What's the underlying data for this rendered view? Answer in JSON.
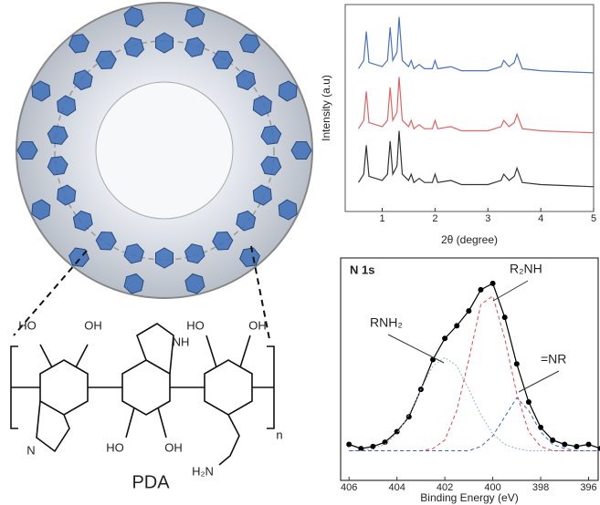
{
  "chart_data": [
    {
      "type": "line",
      "xlabel": "2θ (degree)",
      "ylabel": "Intensity (a.u)",
      "xlim": [
        0.3,
        5
      ],
      "xticks": [
        1,
        2,
        3,
        4,
        5
      ],
      "ylim": [
        0,
        100
      ],
      "x": [
        0.55,
        0.65,
        0.7,
        0.75,
        1.0,
        1.1,
        1.15,
        1.2,
        1.28,
        1.32,
        1.38,
        1.5,
        1.55,
        1.6,
        1.7,
        1.8,
        1.95,
        2.0,
        2.05,
        2.3,
        2.5,
        3.0,
        3.25,
        3.3,
        3.4,
        3.5,
        3.55,
        3.65,
        4.0,
        5.0
      ],
      "series": [
        {
          "color": "#4a72c0",
          "values": [
            69,
            73,
            87,
            72,
            70,
            73,
            89,
            73,
            77,
            94,
            73,
            70,
            73,
            69,
            71,
            69,
            69,
            73,
            69,
            70,
            68,
            68,
            70,
            73,
            70,
            72,
            76,
            69,
            68,
            67
          ]
        },
        {
          "color": "#e06464",
          "values": [
            40,
            44,
            58,
            43,
            41,
            44,
            60,
            44,
            48,
            65,
            44,
            41,
            44,
            40,
            42,
            40,
            40,
            44,
            40,
            41,
            39,
            39,
            41,
            44,
            41,
            43,
            47,
            40,
            39,
            38
          ]
        },
        {
          "color": "#333333",
          "values": [
            14,
            18,
            32,
            17,
            15,
            18,
            34,
            18,
            22,
            39,
            18,
            15,
            18,
            14,
            16,
            14,
            14,
            18,
            14,
            15,
            13,
            13,
            15,
            18,
            15,
            17,
            21,
            14,
            13,
            12
          ]
        }
      ]
    },
    {
      "type": "scatter",
      "title": "N 1s",
      "xlabel": "Binding Energy (eV)",
      "xlim": [
        406.35,
        395.6
      ],
      "xticks": [
        406,
        404,
        402,
        400,
        398,
        396
      ],
      "ylim": [
        -5,
        100
      ],
      "x": [
        406,
        405.5,
        405,
        404.5,
        404,
        403.5,
        403,
        402.5,
        402,
        401.5,
        401,
        400.5,
        400,
        399.5,
        399,
        398.5,
        398,
        397.5,
        397,
        396.5,
        396,
        395.5
      ],
      "annotations": [
        "RNH₂",
        "R₂NH",
        "=NR"
      ],
      "series": [
        {
          "color": "#000000",
          "values": [
            12,
            10,
            11,
            13,
            18,
            25,
            38,
            52,
            62,
            68,
            75,
            85,
            88,
            72,
            50,
            32,
            20,
            14,
            12,
            11,
            12,
            10
          ]
        },
        {
          "color": "#9ab0c8",
          "values": [
            9,
            9,
            10,
            12,
            17,
            26,
            38,
            49,
            53,
            49,
            38,
            26,
            17,
            12,
            10,
            9,
            9,
            9,
            9,
            9,
            9,
            9
          ]
        },
        {
          "color": "#e04848",
          "values": [
            9,
            9,
            9,
            9,
            9,
            9,
            9,
            10,
            14,
            28,
            52,
            78,
            82,
            62,
            36,
            18,
            11,
            9,
            9,
            9,
            9,
            9
          ]
        },
        {
          "color": "#3a62b8",
          "values": [
            9,
            9,
            9,
            9,
            9,
            9,
            9,
            9,
            9,
            9,
            9,
            11,
            16,
            25,
            34,
            28,
            18,
            12,
            10,
            9,
            9,
            9
          ]
        }
      ]
    }
  ],
  "diagram": {
    "labels": [
      "HO",
      "OH",
      "NH",
      "HO",
      "OH",
      "N",
      "HO",
      "OH",
      "H₂N",
      "n",
      "PDA"
    ]
  }
}
